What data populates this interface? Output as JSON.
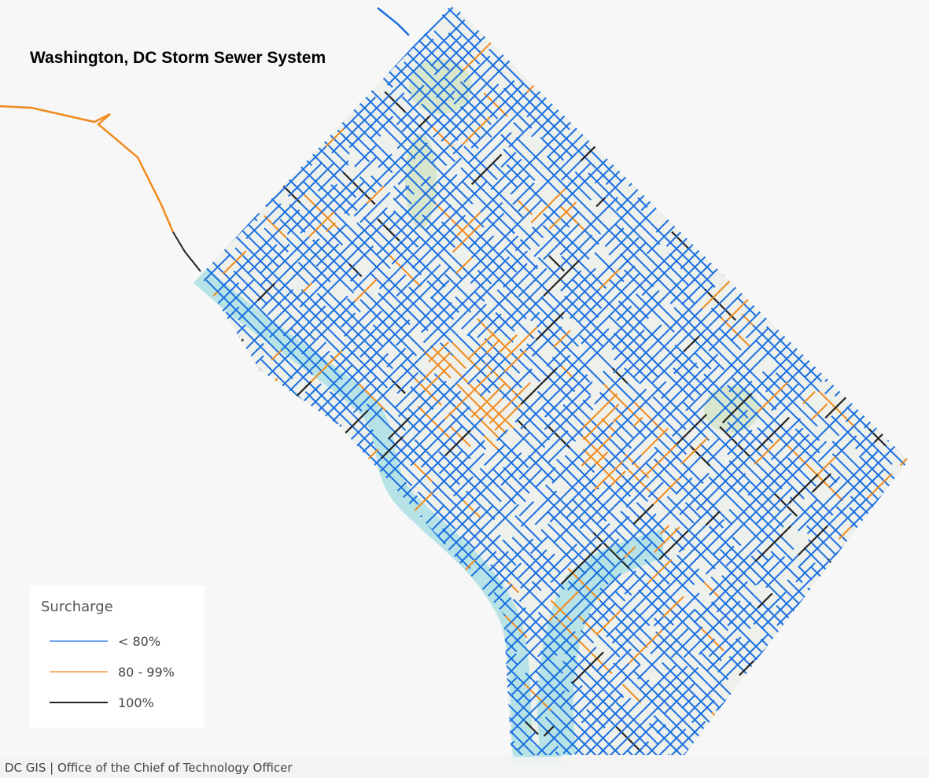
{
  "title": "Washington, DC Storm Sewer System",
  "legend": {
    "title": "Surcharge",
    "items": [
      {
        "label": "< 80%",
        "color": "#1a6fe0"
      },
      {
        "label": "80 - 99%",
        "color": "#f08a1e"
      },
      {
        "label": "100%",
        "color": "#222222"
      }
    ]
  },
  "attribution": "DC GIS | Office of the Chief of Technology Officer"
}
